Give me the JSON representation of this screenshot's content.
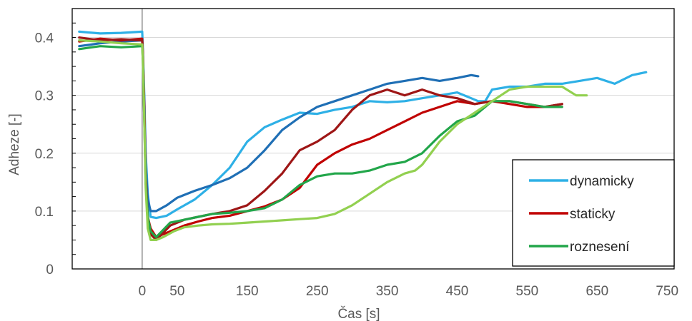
{
  "chart_data": {
    "type": "line",
    "title": "",
    "xlabel": "Čas [s]",
    "ylabel": "Adheze [-]",
    "xlim": [
      -100,
      760
    ],
    "ylim": [
      0,
      0.45
    ],
    "xticks": [
      0,
      50,
      150,
      250,
      350,
      450,
      550,
      650,
      750
    ],
    "xtick_labels": [
      "0",
      "50",
      "150",
      "250",
      "350",
      "450",
      "550",
      "650",
      "750"
    ],
    "yticks": [
      0,
      0.1,
      0.2,
      0.3,
      0.4
    ],
    "ytick_labels": [
      "0",
      "0.1",
      "0.2",
      "0.3",
      "0.4"
    ],
    "grid": "horizontal",
    "legend_position": "bottom-right",
    "legend": [
      {
        "label": "dynamicky",
        "color": "#2eb0e6"
      },
      {
        "label": "staticky",
        "color": "#c00000"
      },
      {
        "label": "roznesení",
        "color": "#22a64a"
      }
    ],
    "series": [
      {
        "color": "#2eb0e6",
        "x": [
          -90,
          -60,
          -30,
          0,
          1,
          3,
          5,
          8,
          12,
          20,
          35,
          50,
          75,
          100,
          125,
          150,
          175,
          200,
          225,
          250,
          275,
          300,
          325,
          350,
          375,
          400,
          425,
          450,
          470,
          480,
          490,
          500,
          525,
          550,
          575,
          600,
          625,
          650,
          675,
          700,
          720
        ],
        "y": [
          0.41,
          0.407,
          0.408,
          0.41,
          0.38,
          0.3,
          0.2,
          0.13,
          0.09,
          0.088,
          0.092,
          0.103,
          0.12,
          0.145,
          0.175,
          0.22,
          0.245,
          0.258,
          0.27,
          0.268,
          0.275,
          0.28,
          0.29,
          0.288,
          0.29,
          0.295,
          0.3,
          0.305,
          0.295,
          0.29,
          0.29,
          0.31,
          0.315,
          0.315,
          0.32,
          0.32,
          0.325,
          0.33,
          0.32,
          0.335,
          0.34
        ]
      },
      {
        "color": "#1f6fb5",
        "x": [
          -90,
          -60,
          -30,
          0,
          1,
          3,
          5,
          8,
          12,
          20,
          35,
          50,
          75,
          100,
          125,
          150,
          175,
          200,
          225,
          250,
          275,
          300,
          325,
          350,
          375,
          400,
          425,
          450,
          470,
          480
        ],
        "y": [
          0.385,
          0.39,
          0.393,
          0.395,
          0.37,
          0.29,
          0.18,
          0.12,
          0.1,
          0.1,
          0.11,
          0.123,
          0.135,
          0.145,
          0.157,
          0.175,
          0.205,
          0.24,
          0.262,
          0.28,
          0.29,
          0.3,
          0.31,
          0.32,
          0.325,
          0.33,
          0.325,
          0.33,
          0.335,
          0.333
        ]
      },
      {
        "color": "#c00000",
        "x": [
          -90,
          -60,
          -30,
          0,
          1,
          3,
          5,
          8,
          12,
          20,
          40,
          60,
          80,
          100,
          125,
          150,
          175,
          200,
          225,
          250,
          275,
          300,
          325,
          350,
          375,
          400,
          425,
          450,
          475,
          500,
          525,
          550,
          575,
          600
        ],
        "y": [
          0.393,
          0.398,
          0.395,
          0.398,
          0.37,
          0.28,
          0.16,
          0.09,
          0.07,
          0.055,
          0.065,
          0.075,
          0.082,
          0.088,
          0.092,
          0.1,
          0.108,
          0.12,
          0.14,
          0.18,
          0.2,
          0.215,
          0.225,
          0.24,
          0.255,
          0.27,
          0.28,
          0.29,
          0.285,
          0.29,
          0.285,
          0.28,
          0.28,
          0.285
        ]
      },
      {
        "color": "#9e1616",
        "x": [
          -90,
          -60,
          -30,
          0,
          1,
          3,
          5,
          8,
          12,
          20,
          40,
          60,
          80,
          100,
          125,
          150,
          175,
          200,
          225,
          250,
          275,
          300,
          325,
          350,
          375,
          400,
          425,
          450,
          475,
          500,
          525,
          550,
          575,
          600
        ],
        "y": [
          0.4,
          0.395,
          0.397,
          0.395,
          0.37,
          0.27,
          0.15,
          0.085,
          0.06,
          0.05,
          0.075,
          0.085,
          0.09,
          0.095,
          0.1,
          0.11,
          0.135,
          0.165,
          0.205,
          0.22,
          0.24,
          0.275,
          0.3,
          0.31,
          0.3,
          0.31,
          0.3,
          0.295,
          0.285,
          0.29,
          0.29,
          0.285,
          0.28,
          0.285
        ]
      },
      {
        "color": "#22a64a",
        "x": [
          -90,
          -60,
          -30,
          0,
          1,
          3,
          5,
          8,
          12,
          20,
          40,
          60,
          80,
          100,
          125,
          150,
          175,
          200,
          225,
          250,
          275,
          300,
          325,
          350,
          375,
          400,
          425,
          450,
          475,
          500,
          525,
          550,
          575,
          600
        ],
        "y": [
          0.38,
          0.385,
          0.383,
          0.385,
          0.36,
          0.26,
          0.15,
          0.09,
          0.065,
          0.055,
          0.08,
          0.085,
          0.09,
          0.095,
          0.097,
          0.1,
          0.105,
          0.12,
          0.145,
          0.16,
          0.165,
          0.165,
          0.17,
          0.18,
          0.185,
          0.2,
          0.23,
          0.255,
          0.265,
          0.29,
          0.29,
          0.285,
          0.28,
          0.28
        ]
      },
      {
        "color": "#92d050",
        "x": [
          -90,
          -60,
          -30,
          0,
          1,
          3,
          5,
          8,
          12,
          20,
          30,
          45,
          60,
          80,
          100,
          125,
          150,
          175,
          200,
          225,
          250,
          275,
          300,
          325,
          350,
          375,
          390,
          400,
          425,
          450,
          475,
          500,
          525,
          550,
          575,
          600,
          620,
          635
        ],
        "y": [
          0.395,
          0.393,
          0.39,
          0.388,
          0.36,
          0.26,
          0.14,
          0.07,
          0.05,
          0.05,
          0.055,
          0.065,
          0.072,
          0.075,
          0.077,
          0.078,
          0.08,
          0.082,
          0.084,
          0.086,
          0.088,
          0.095,
          0.11,
          0.13,
          0.15,
          0.165,
          0.17,
          0.18,
          0.22,
          0.25,
          0.27,
          0.29,
          0.31,
          0.315,
          0.315,
          0.315,
          0.3,
          0.3
        ]
      }
    ]
  }
}
